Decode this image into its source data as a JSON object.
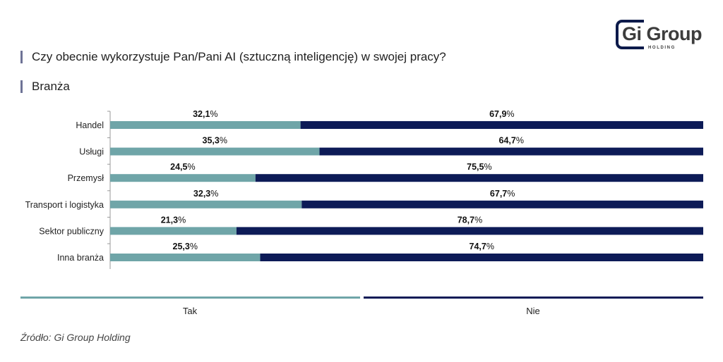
{
  "title": "Czy obecnie wykorzystuje Pan/Pani AI (sztuczną inteligencję) w swojej pracy?",
  "subtitle": "Branża",
  "logo": {
    "brand": "Gi Group",
    "sub": "HOLDING"
  },
  "source": "Źródło: Gi Group Holding",
  "colors": {
    "tak": "#6fa5a8",
    "nie": "#0d1b57",
    "axis": "#999999"
  },
  "chart_data": {
    "type": "bar",
    "orientation": "horizontal",
    "stacked": true,
    "categories": [
      "Handel",
      "Usługi",
      "Przemysł",
      "Transport i logistyka",
      "Sektor publiczny",
      "Inna branża"
    ],
    "series": [
      {
        "name": "Tak",
        "values": [
          32.1,
          35.3,
          24.5,
          32.3,
          21.3,
          25.3
        ],
        "labels": [
          "32,1%",
          "35,3%",
          "24,5%",
          "32,3%",
          "21,3%",
          "25,3%"
        ]
      },
      {
        "name": "Nie",
        "values": [
          67.9,
          64.7,
          75.5,
          67.7,
          78.7,
          74.7
        ],
        "labels": [
          "67,9%",
          "64,7%",
          "75,5%",
          "67,7%",
          "78,7%",
          "74,7%"
        ]
      }
    ],
    "xlim": [
      0,
      100
    ],
    "legend": "bottom"
  }
}
